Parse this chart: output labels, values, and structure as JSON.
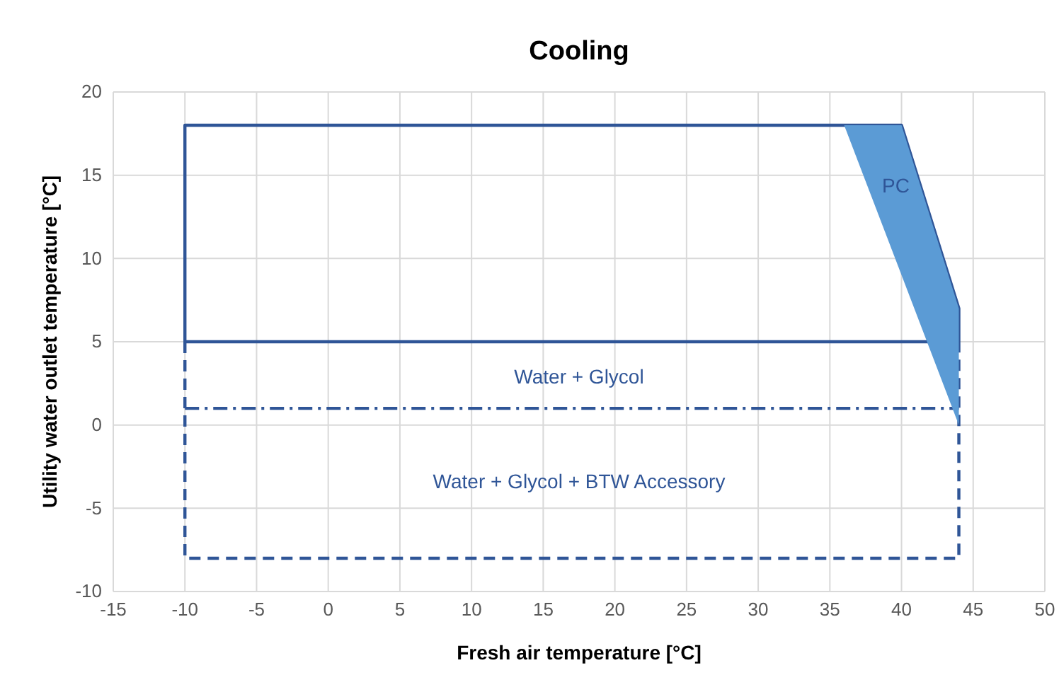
{
  "chart_data": {
    "type": "line",
    "title": "Cooling",
    "xlabel": "Fresh air temperature [°C]",
    "ylabel": "Utility water outlet temperature [°C]",
    "xlim": [
      -15,
      50
    ],
    "xticks": [
      -15,
      -10,
      -5,
      0,
      5,
      10,
      15,
      20,
      25,
      30,
      35,
      40,
      45,
      50
    ],
    "ylim": [
      -10,
      20
    ],
    "yticks": [
      -10,
      -5,
      0,
      5,
      10,
      15,
      20
    ],
    "grid": true,
    "marker": "none",
    "series": [
      {
        "color": "#2f5597",
        "line_style": "solid",
        "x": [
          -10,
          -10,
          40,
          44,
          44
        ],
        "values": [
          5,
          18,
          18,
          7,
          5
        ]
      },
      {
        "color": "#2f5597",
        "line_style": "solid",
        "x": [
          -10,
          44
        ],
        "values": [
          5,
          5
        ]
      },
      {
        "color": "#2f5597",
        "line_style": "dashed",
        "x": [
          -10,
          -10,
          44,
          44
        ],
        "values": [
          5,
          -8,
          -8,
          5
        ]
      },
      {
        "color": "#2f5597",
        "line_style": "dotted",
        "x": [
          -10,
          44
        ],
        "values": [
          1,
          1
        ]
      },
      {
        "type": "area",
        "color": "#5b9bd5",
        "x": [
          36,
          40,
          44,
          44,
          36
        ],
        "values": [
          18,
          18,
          7,
          0,
          18
        ]
      }
    ],
    "annotations": [
      "PC",
      "Water + Glycol",
      "Water + Glycol + BTW Accessory"
    ]
  }
}
